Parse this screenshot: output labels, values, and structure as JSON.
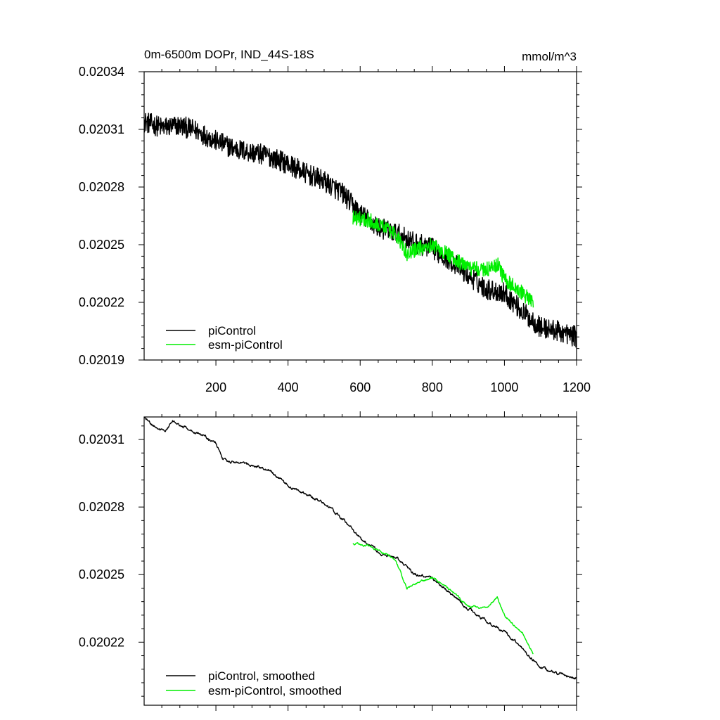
{
  "chart_data": [
    {
      "type": "line",
      "title": "0m-6500m DOPr, IND_44S-18S",
      "units": "mmol/m^3",
      "xlim": [
        1,
        1200
      ],
      "ylim": [
        0.02019,
        0.02034
      ],
      "x_ticks": [
        200,
        400,
        600,
        800,
        1000,
        1200
      ],
      "y_ticks": [
        "0.02034",
        "0.02031",
        "0.02028",
        "0.02025",
        "0.02022",
        "0.02019"
      ],
      "legend": "bottom-left",
      "series": [
        {
          "name": "piControl",
          "color": "#000000",
          "noise": 2.5e-06,
          "points": [
            [
              1,
              0.020314
            ],
            [
              50,
              0.020311
            ],
            [
              100,
              0.020312
            ],
            [
              150,
              0.020309
            ],
            [
              200,
              0.020304
            ],
            [
              250,
              0.0203
            ],
            [
              300,
              0.020298
            ],
            [
              350,
              0.020296
            ],
            [
              400,
              0.020292
            ],
            [
              450,
              0.020287
            ],
            [
              500,
              0.020283
            ],
            [
              550,
              0.020277
            ],
            [
              600,
              0.020266
            ],
            [
              650,
              0.020259
            ],
            [
              700,
              0.020256
            ],
            [
              750,
              0.020251
            ],
            [
              800,
              0.020248
            ],
            [
              850,
              0.020242
            ],
            [
              900,
              0.020234
            ],
            [
              950,
              0.020227
            ],
            [
              1000,
              0.020225
            ],
            [
              1050,
              0.020215
            ],
            [
              1100,
              0.020207
            ],
            [
              1150,
              0.020205
            ],
            [
              1200,
              0.020202
            ]
          ]
        },
        {
          "name": "esm-piControl",
          "color": "#00ee00",
          "noise": 1.8e-06,
          "points": [
            [
              580,
              0.020264
            ],
            [
              620,
              0.020263
            ],
            [
              660,
              0.02026
            ],
            [
              700,
              0.020255
            ],
            [
              730,
              0.020245
            ],
            [
              760,
              0.020248
            ],
            [
              800,
              0.02025
            ],
            [
              850,
              0.020244
            ],
            [
              900,
              0.020238
            ],
            [
              950,
              0.020237
            ],
            [
              980,
              0.02024
            ],
            [
              1000,
              0.020232
            ],
            [
              1050,
              0.020225
            ],
            [
              1080,
              0.020219
            ]
          ]
        }
      ]
    },
    {
      "type": "line",
      "xlim": [
        1,
        1200
      ],
      "ylim": [
        0.020192,
        0.02032
      ],
      "y_ticks": [
        "0.02031",
        "0.02028",
        "0.02025",
        "0.02022"
      ],
      "legend": "bottom-left",
      "series": [
        {
          "name": "piControl, smoothed",
          "color": "#000000",
          "noise": 1.2e-06,
          "points": [
            [
              1,
              0.02032
            ],
            [
              20,
              0.020317
            ],
            [
              60,
              0.020313
            ],
            [
              80,
              0.020318
            ],
            [
              150,
              0.020313
            ],
            [
              200,
              0.020308
            ],
            [
              220,
              0.020301
            ],
            [
              300,
              0.020299
            ],
            [
              350,
              0.020296
            ],
            [
              400,
              0.02029
            ],
            [
              450,
              0.020286
            ],
            [
              500,
              0.020282
            ],
            [
              550,
              0.020275
            ],
            [
              600,
              0.020266
            ],
            [
              650,
              0.02026
            ],
            [
              700,
              0.020258
            ],
            [
              750,
              0.02025
            ],
            [
              800,
              0.020248
            ],
            [
              850,
              0.020242
            ],
            [
              900,
              0.020235
            ],
            [
              950,
              0.020229
            ],
            [
              1000,
              0.020225
            ],
            [
              1050,
              0.020217
            ],
            [
              1100,
              0.020209
            ],
            [
              1150,
              0.020206
            ],
            [
              1200,
              0.020204
            ]
          ]
        },
        {
          "name": "esm-piControl, smoothed",
          "color": "#00ee00",
          "noise": 9e-07,
          "points": [
            [
              580,
              0.020264
            ],
            [
              620,
              0.020263
            ],
            [
              660,
              0.02026
            ],
            [
              700,
              0.020256
            ],
            [
              730,
              0.020244
            ],
            [
              760,
              0.020247
            ],
            [
              800,
              0.020249
            ],
            [
              850,
              0.020243
            ],
            [
              900,
              0.020236
            ],
            [
              950,
              0.020235
            ],
            [
              980,
              0.02024
            ],
            [
              1000,
              0.020232
            ],
            [
              1050,
              0.020224
            ],
            [
              1080,
              0.020215
            ]
          ]
        }
      ]
    }
  ]
}
